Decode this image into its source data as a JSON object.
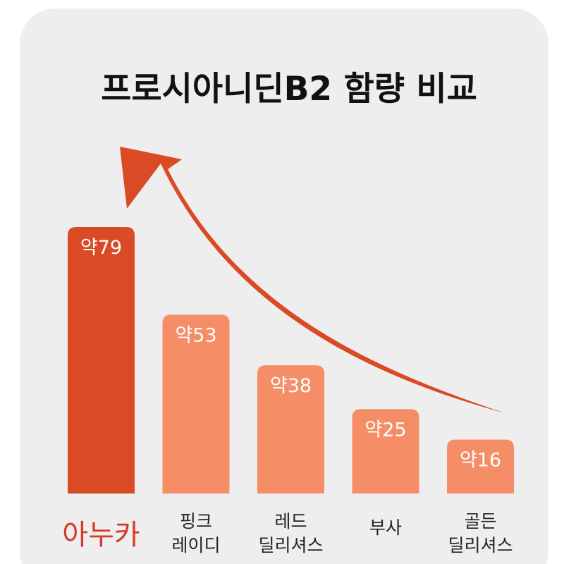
{
  "colors": {
    "background": "#eeeeee",
    "highlight_bar": "#d94a25",
    "bar": "#f58d67",
    "arrow": "#d94a25",
    "highlight_text": "#d63a2a",
    "text": "#222222"
  },
  "chart_data": {
    "type": "bar",
    "title": "프로시아니딘B2 함량 비교",
    "categories": [
      {
        "lines": [
          "아누카"
        ],
        "highlight": true
      },
      {
        "lines": [
          "핑크",
          "레이디"
        ],
        "highlight": false
      },
      {
        "lines": [
          "레드",
          "딜리셔스"
        ],
        "highlight": false
      },
      {
        "lines": [
          "부사"
        ],
        "highlight": false
      },
      {
        "lines": [
          "골든",
          "딜리셔스"
        ],
        "highlight": false
      }
    ],
    "values": [
      79,
      53,
      38,
      25,
      16
    ],
    "value_labels": [
      "약79",
      "약53",
      "약38",
      "약25",
      "약16"
    ],
    "ylim": [
      0,
      100
    ],
    "axes_visible": false,
    "grid": false,
    "legend": "none",
    "decoration": "curved arrow rising toward the highest bar"
  }
}
